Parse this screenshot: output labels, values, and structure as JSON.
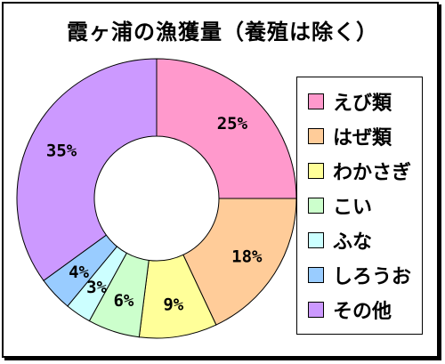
{
  "chart_data": {
    "type": "pie",
    "title": "霞ヶ浦の漁獲量（養殖は除く）",
    "categories": [
      "えび類",
      "はぜ類",
      "わかさぎ",
      "こい",
      "ふな",
      "しろうお",
      "その他"
    ],
    "values": [
      25,
      18,
      9,
      6,
      3,
      4,
      35
    ],
    "data_labels": [
      "25%",
      "18%",
      "9%",
      "6%",
      "3%",
      "4%",
      "35%"
    ],
    "colors": [
      "#ff99cc",
      "#ffcc99",
      "#ffff99",
      "#ccffcc",
      "#ccffff",
      "#99ccff",
      "#cc99ff"
    ],
    "donut": true,
    "legend_position": "right",
    "start_angle": "top",
    "direction": "clockwise"
  },
  "legend": {
    "items": [
      {
        "label": "えび類"
      },
      {
        "label": "はぜ類"
      },
      {
        "label": "わかさぎ"
      },
      {
        "label": "こい"
      },
      {
        "label": "ふな"
      },
      {
        "label": "しろうお"
      },
      {
        "label": "その他"
      }
    ]
  }
}
